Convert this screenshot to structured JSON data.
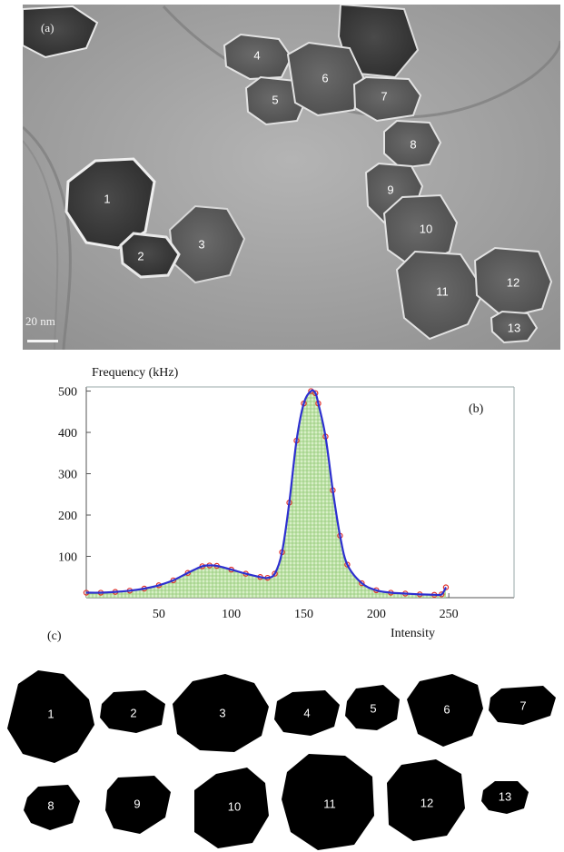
{
  "panels": {
    "a_label": "(a)",
    "b_label": "(b)",
    "c_label": "(c)",
    "scale_bar": "20 nm"
  },
  "particles": [
    "1",
    "2",
    "3",
    "4",
    "5",
    "6",
    "7",
    "8",
    "9",
    "10",
    "11",
    "12",
    "13"
  ],
  "colors": {
    "tem_background": "#9a9a9a",
    "fit_curve": "#2d2fd0",
    "data_markers": "#e0302a",
    "histogram_fill": "#a8d88a"
  },
  "chart_data": {
    "type": "area",
    "title": "",
    "ylabel": "Frequency (kHz)",
    "xlabel": "Intensity",
    "xlim": [
      0,
      295
    ],
    "ylim": [
      0,
      510
    ],
    "xticks": [
      50,
      100,
      150,
      200,
      250
    ],
    "yticks": [
      100,
      200,
      300,
      400,
      500
    ],
    "x": [
      0,
      10,
      20,
      30,
      40,
      50,
      60,
      70,
      80,
      85,
      90,
      100,
      110,
      120,
      125,
      130,
      135,
      140,
      145,
      150,
      155,
      158,
      160,
      165,
      170,
      175,
      180,
      190,
      200,
      210,
      220,
      230,
      240,
      245,
      248
    ],
    "y": [
      12,
      12,
      14,
      17,
      22,
      30,
      42,
      60,
      76,
      78,
      77,
      68,
      58,
      50,
      48,
      58,
      110,
      230,
      380,
      470,
      500,
      495,
      470,
      390,
      260,
      150,
      80,
      35,
      18,
      12,
      10,
      8,
      7,
      8,
      25
    ]
  }
}
